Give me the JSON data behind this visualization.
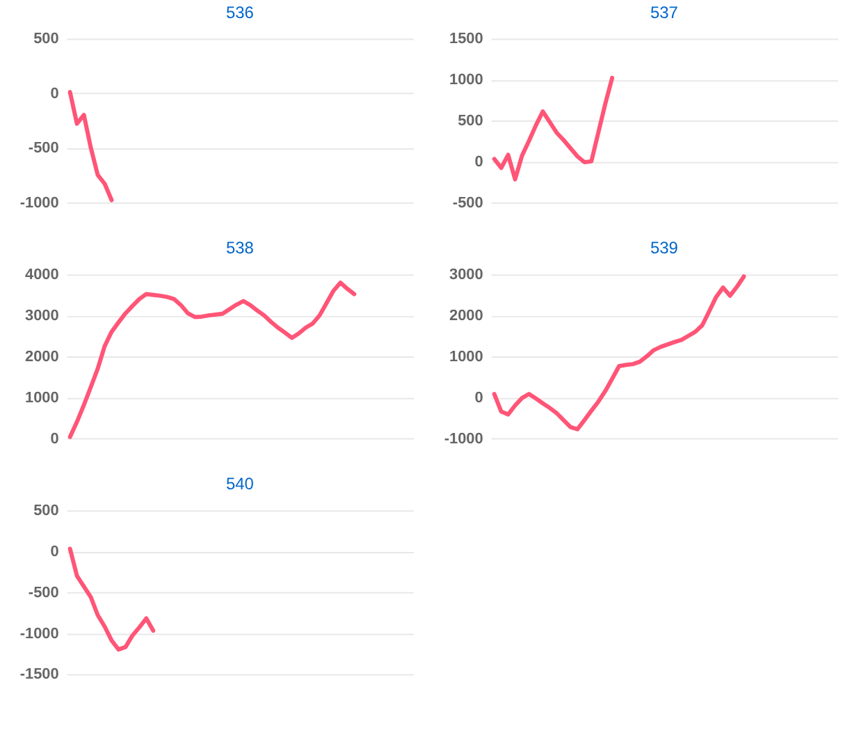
{
  "chart_data": [
    {
      "type": "line",
      "title": "536",
      "categories": [
        null,
        null,
        null,
        null,
        null,
        null,
        null,
        null,
        null,
        null,
        null,
        null,
        null,
        null,
        null,
        null,
        null,
        null,
        null,
        null,
        null,
        null,
        null,
        null,
        null,
        null,
        null,
        null,
        null,
        null,
        null,
        null,
        null,
        null,
        null,
        null,
        null,
        null,
        null,
        null,
        null,
        null,
        null,
        null,
        null,
        null,
        null,
        null,
        null,
        null
      ],
      "series": [
        {
          "color": "#ff5577",
          "values": [
            10,
            -280,
            -200,
            -500,
            -750,
            -830,
            -980,
            null,
            null,
            null,
            null,
            null,
            null,
            null,
            null,
            null,
            null,
            null,
            null,
            null,
            null,
            null,
            null,
            null,
            null,
            null,
            null,
            null,
            null,
            null,
            null,
            null,
            null,
            null,
            null,
            null,
            null,
            null,
            null,
            null,
            null,
            null,
            null,
            null,
            null,
            null,
            null,
            null,
            null,
            null
          ]
        }
      ],
      "ylim": [
        -1000,
        500
      ],
      "yticks": [
        -1000,
        -500,
        0,
        500
      ],
      "grid": "y",
      "tick_labels": "y"
    },
    {
      "type": "line",
      "title": "537",
      "categories": [
        null,
        null,
        null,
        null,
        null,
        null,
        null,
        null,
        null,
        null,
        null,
        null,
        null,
        null,
        null,
        null,
        null,
        null,
        null,
        null,
        null,
        null,
        null,
        null,
        null,
        null,
        null,
        null,
        null,
        null,
        null,
        null,
        null,
        null,
        null,
        null,
        null,
        null,
        null,
        null,
        null,
        null,
        null,
        null,
        null,
        null,
        null,
        null,
        null,
        null
      ],
      "series": [
        {
          "color": "#ff5577",
          "values": [
            30,
            -80,
            80,
            -220,
            70,
            250,
            440,
            610,
            480,
            350,
            260,
            160,
            60,
            -10,
            0,
            350,
            700,
            1020,
            null,
            null,
            null,
            null,
            null,
            null,
            null,
            null,
            null,
            null,
            null,
            null,
            null,
            null,
            null,
            null,
            null,
            null,
            null,
            null,
            null,
            null,
            null,
            null,
            null,
            null,
            null,
            null,
            null,
            null,
            null,
            null
          ]
        }
      ],
      "ylim": [
        -500,
        1500
      ],
      "yticks": [
        -500,
        0,
        500,
        1000,
        1500
      ],
      "grid": "y",
      "tick_labels": "y"
    },
    {
      "type": "line",
      "title": "538",
      "categories": [
        null,
        null,
        null,
        null,
        null,
        null,
        null,
        null,
        null,
        null,
        null,
        null,
        null,
        null,
        null,
        null,
        null,
        null,
        null,
        null,
        null,
        null,
        null,
        null,
        null,
        null,
        null,
        null,
        null,
        null,
        null,
        null,
        null,
        null,
        null,
        null,
        null,
        null,
        null,
        null,
        null,
        null,
        null,
        null,
        null,
        null,
        null,
        null,
        null,
        null
      ],
      "series": [
        {
          "color": "#ff5577",
          "values": [
            30,
            400,
            810,
            1250,
            1700,
            2250,
            2600,
            2830,
            3050,
            3230,
            3400,
            3520,
            3500,
            3480,
            3450,
            3400,
            3250,
            3050,
            2960,
            2970,
            3000,
            3020,
            3040,
            3150,
            3260,
            3350,
            3250,
            3120,
            3000,
            2840,
            2700,
            2580,
            2450,
            2560,
            2700,
            2800,
            3000,
            3300,
            3600,
            3800,
            3650,
            3520,
            null,
            null,
            null,
            null,
            null,
            null,
            null,
            null
          ]
        }
      ],
      "ylim": [
        0,
        4000
      ],
      "yticks": [
        0,
        1000,
        2000,
        3000,
        4000
      ],
      "grid": "y",
      "tick_labels": "y"
    },
    {
      "type": "line",
      "title": "539",
      "categories": [
        null,
        null,
        null,
        null,
        null,
        null,
        null,
        null,
        null,
        null,
        null,
        null,
        null,
        null,
        null,
        null,
        null,
        null,
        null,
        null,
        null,
        null,
        null,
        null,
        null,
        null,
        null,
        null,
        null,
        null,
        null,
        null,
        null,
        null,
        null,
        null,
        null,
        null,
        null,
        null,
        null,
        null,
        null,
        null,
        null,
        null,
        null,
        null,
        null,
        null
      ],
      "series": [
        {
          "color": "#ff5577",
          "values": [
            80,
            -350,
            -420,
            -200,
            -20,
            80,
            -30,
            -150,
            -260,
            -390,
            -560,
            -730,
            -780,
            -560,
            -330,
            -110,
            150,
            450,
            760,
            790,
            810,
            870,
            1000,
            1150,
            1230,
            1290,
            1350,
            1400,
            1500,
            1600,
            1760,
            2100,
            2450,
            2680,
            2480,
            2700,
            2950,
            null,
            null,
            null,
            null,
            null,
            null,
            null,
            null,
            null,
            null,
            null,
            null,
            null
          ]
        }
      ],
      "ylim": [
        -1000,
        3000
      ],
      "yticks": [
        -1000,
        0,
        1000,
        2000,
        3000
      ],
      "grid": "y",
      "tick_labels": "y"
    },
    {
      "type": "line",
      "title": "540",
      "categories": [
        null,
        null,
        null,
        null,
        null,
        null,
        null,
        null,
        null,
        null,
        null,
        null,
        null,
        null,
        null,
        null,
        null,
        null,
        null,
        null,
        null,
        null,
        null,
        null,
        null,
        null,
        null,
        null,
        null,
        null,
        null,
        null,
        null,
        null,
        null,
        null,
        null,
        null,
        null,
        null,
        null,
        null,
        null,
        null,
        null,
        null,
        null,
        null,
        null,
        null
      ],
      "series": [
        {
          "color": "#ff5577",
          "values": [
            30,
            -300,
            -430,
            -560,
            -780,
            -920,
            -1090,
            -1200,
            -1170,
            -1030,
            -930,
            -820,
            -970,
            null,
            null,
            null,
            null,
            null,
            null,
            null,
            null,
            null,
            null,
            null,
            null,
            null,
            null,
            null,
            null,
            null,
            null,
            null,
            null,
            null,
            null,
            null,
            null,
            null,
            null,
            null,
            null,
            null,
            null,
            null,
            null,
            null,
            null,
            null,
            null,
            null
          ]
        }
      ],
      "ylim": [
        -1500,
        500
      ],
      "yticks": [
        -1500,
        -1000,
        -500,
        0,
        500
      ],
      "grid": "y",
      "tick_labels": "y"
    }
  ]
}
